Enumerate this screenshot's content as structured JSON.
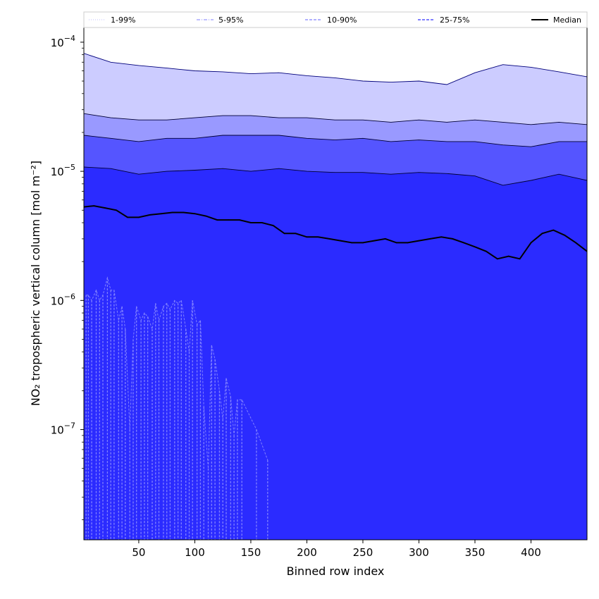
{
  "chart_data": {
    "type": "area",
    "xlabel": "Binned row index",
    "ylabel": "NO₂ tropospheric vertical column [mol m⁻²]",
    "x_scale": "linear",
    "y_scale": "log",
    "xlim": [
      1,
      450
    ],
    "ylim": [
      1.4e-08,
      0.00013
    ],
    "x_ticks": [
      50,
      100,
      150,
      200,
      250,
      300,
      350,
      400
    ],
    "x_tick_labels": [
      "50",
      "100",
      "150",
      "200",
      "250",
      "300",
      "350",
      "400"
    ],
    "y_ticks": [
      1e-07,
      1e-06,
      1e-05,
      0.0001
    ],
    "y_tick_labels": [
      {
        "base": "10",
        "exp": "−7"
      },
      {
        "base": "10",
        "exp": "−6"
      },
      {
        "base": "10",
        "exp": "−5"
      },
      {
        "base": "10",
        "exp": "−4"
      }
    ],
    "grid": false,
    "legend_position": "top",
    "legend": [
      {
        "label": "1-99%",
        "color": "#ccccff",
        "style": "dotted"
      },
      {
        "label": "5-95%",
        "color": "#9999ff",
        "style": "dashdot"
      },
      {
        "label": "10-90%",
        "color": "#8080ff",
        "style": "dashed"
      },
      {
        "label": "25-75%",
        "color": "#3333ff",
        "style": "dashed"
      },
      {
        "label": "Median",
        "color": "#000000",
        "style": "solid"
      }
    ],
    "bands": [
      {
        "name": "1-99%",
        "color": "#ccccff",
        "x": [
          1,
          25,
          50,
          75,
          100,
          125,
          150,
          175,
          200,
          225,
          250,
          275,
          300,
          325,
          350,
          375,
          400,
          425,
          450
        ],
        "upper": [
          8.2e-05,
          7e-05,
          6.6e-05,
          6.3e-05,
          6e-05,
          5.9e-05,
          5.7e-05,
          5.8e-05,
          5.5e-05,
          5.3e-05,
          5e-05,
          4.9e-05,
          5e-05,
          4.7e-05,
          5.8e-05,
          6.7e-05,
          6.4e-05,
          5.9e-05,
          5.4e-05
        ],
        "lower": [
          9e-07,
          1.1e-06,
          7e-07,
          8.5e-07,
          8e-07,
          1.5e-07,
          3e-08,
          1.4e-08,
          1.4e-08,
          1.4e-08,
          1.4e-08,
          1.4e-08,
          1.4e-08,
          1.4e-08,
          1.4e-08,
          1.4e-08,
          1.4e-08,
          1.4e-08,
          1.4e-08
        ]
      },
      {
        "name": "5-95%",
        "color": "#9999ff",
        "x": [
          1,
          25,
          50,
          75,
          100,
          125,
          150,
          175,
          200,
          225,
          250,
          275,
          300,
          325,
          350,
          375,
          400,
          425,
          450
        ],
        "upper": [
          2.8e-05,
          2.6e-05,
          2.5e-05,
          2.5e-05,
          2.6e-05,
          2.7e-05,
          2.7e-05,
          2.6e-05,
          2.6e-05,
          2.5e-05,
          2.5e-05,
          2.4e-05,
          2.5e-05,
          2.4e-05,
          2.5e-05,
          2.4e-05,
          2.3e-05,
          2.4e-05,
          2.3e-05
        ],
        "lower": [
          1.4e-08,
          1.4e-08,
          1.4e-08,
          1.4e-08,
          1.4e-08,
          1.4e-08,
          1.4e-08,
          1.4e-08,
          1.4e-08,
          1.4e-08,
          1.4e-08,
          1.4e-08,
          1.4e-08,
          1.4e-08,
          1.4e-08,
          1.4e-08,
          1.4e-08,
          1.4e-08,
          1.4e-08
        ]
      },
      {
        "name": "10-90%",
        "color": "#5555ff",
        "x": [
          1,
          25,
          50,
          75,
          100,
          125,
          150,
          175,
          200,
          225,
          250,
          275,
          300,
          325,
          350,
          375,
          400,
          425,
          450
        ],
        "upper": [
          1.9e-05,
          1.8e-05,
          1.7e-05,
          1.8e-05,
          1.8e-05,
          1.9e-05,
          1.9e-05,
          1.9e-05,
          1.8e-05,
          1.75e-05,
          1.8e-05,
          1.7e-05,
          1.75e-05,
          1.7e-05,
          1.7e-05,
          1.6e-05,
          1.55e-05,
          1.7e-05,
          1.7e-05
        ],
        "lower": [
          1.4e-08,
          1.4e-08,
          1.4e-08,
          1.4e-08,
          1.4e-08,
          1.4e-08,
          1.4e-08,
          1.4e-08,
          1.4e-08,
          1.4e-08,
          1.4e-08,
          1.4e-08,
          1.4e-08,
          1.4e-08,
          1.4e-08,
          1.4e-08,
          1.4e-08,
          1.4e-08,
          1.4e-08
        ]
      },
      {
        "name": "25-75%",
        "color": "#2b2bff",
        "x": [
          1,
          25,
          50,
          75,
          100,
          125,
          150,
          175,
          200,
          225,
          250,
          275,
          300,
          325,
          350,
          375,
          400,
          425,
          450
        ],
        "upper": [
          1.08e-05,
          1.05e-05,
          9.5e-06,
          1e-05,
          1.02e-05,
          1.05e-05,
          1e-05,
          1.05e-05,
          1e-05,
          9.8e-06,
          9.8e-06,
          9.5e-06,
          9.8e-06,
          9.6e-06,
          9.2e-06,
          7.8e-06,
          8.5e-06,
          9.5e-06,
          8.5e-06
        ],
        "lower": [
          1.4e-08,
          1.4e-08,
          1.4e-08,
          1.4e-08,
          1.4e-08,
          1.4e-08,
          1.4e-08,
          1.4e-08,
          1.4e-08,
          1.4e-08,
          1.4e-08,
          1.4e-08,
          1.4e-08,
          1.4e-08,
          1.4e-08,
          1.4e-08,
          1.4e-08,
          1.4e-08,
          1.4e-08
        ]
      }
    ],
    "series": [
      {
        "name": "Median",
        "color": "#000000",
        "x": [
          1,
          10,
          20,
          30,
          40,
          50,
          60,
          70,
          80,
          90,
          100,
          110,
          120,
          130,
          140,
          150,
          160,
          170,
          180,
          190,
          200,
          210,
          220,
          230,
          240,
          250,
          260,
          270,
          280,
          290,
          300,
          310,
          320,
          330,
          340,
          350,
          360,
          370,
          380,
          390,
          400,
          410,
          420,
          430,
          440,
          450
        ],
        "values": [
          5.3e-06,
          5.4e-06,
          5.2e-06,
          5e-06,
          4.4e-06,
          4.4e-06,
          4.6e-06,
          4.7e-06,
          4.8e-06,
          4.8e-06,
          4.7e-06,
          4.5e-06,
          4.2e-06,
          4.2e-06,
          4.2e-06,
          4e-06,
          4e-06,
          3.8e-06,
          3.3e-06,
          3.3e-06,
          3.1e-06,
          3.1e-06,
          3e-06,
          2.9e-06,
          2.8e-06,
          2.8e-06,
          2.9e-06,
          3e-06,
          2.8e-06,
          2.8e-06,
          2.9e-06,
          3e-06,
          3.1e-06,
          3e-06,
          2.8e-06,
          2.6e-06,
          2.4e-06,
          2.1e-06,
          2.2e-06,
          2.1e-06,
          2.8e-06,
          3.3e-06,
          3.5e-06,
          3.2e-06,
          2.8e-06,
          2.4e-06
        ]
      }
    ],
    "lower_1pct_spikes": {
      "name": "1-99% lower",
      "color": "#8080ff",
      "x": [
        3,
        5,
        8,
        12,
        15,
        18,
        22,
        25,
        28,
        32,
        35,
        38,
        42,
        45,
        48,
        52,
        55,
        58,
        62,
        65,
        68,
        72,
        75,
        78,
        82,
        85,
        88,
        92,
        95,
        98,
        102,
        105,
        108,
        112,
        115,
        118,
        122,
        125,
        128,
        132,
        135,
        138,
        142,
        155,
        165
      ],
      "values": [
        1.1e-06,
        1.1e-06,
        1e-06,
        1.2e-06,
        1e-06,
        1.1e-06,
        1.5e-06,
        1.2e-06,
        1.2e-06,
        7e-07,
        9e-07,
        6e-07,
        1e-07,
        5e-07,
        9e-07,
        7e-07,
        8e-07,
        7.5e-07,
        6e-07,
        9.5e-07,
        7e-07,
        9e-07,
        9.5e-07,
        8.5e-07,
        1e-06,
        9.5e-07,
        1e-06,
        6e-07,
        4e-07,
        1e-06,
        6.5e-07,
        7e-07,
        1.5e-07,
        5e-08,
        4.5e-07,
        3.5e-07,
        2e-07,
        1.2e-07,
        2.5e-07,
        1.8e-07,
        9e-08,
        1.7e-07,
        1.7e-07,
        1e-07,
        5.8e-08
      ]
    }
  }
}
